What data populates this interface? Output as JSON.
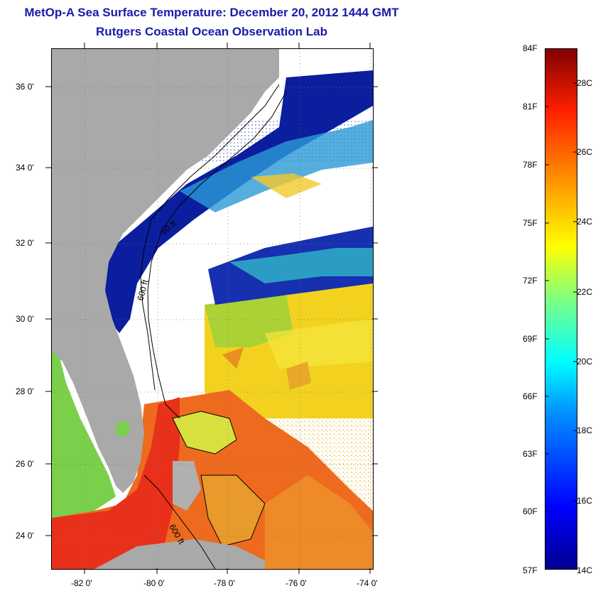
{
  "header": {
    "title": "MetOp-A Sea Surface Temperature:  December 20, 2012 1444 GMT",
    "subtitle": "Rutgers Coastal Ocean Observation Lab"
  },
  "map": {
    "lat_labels": [
      "36 0'",
      "34 0'",
      "32 0'",
      "30 0'",
      "28 0'",
      "26 0'",
      "24 0'"
    ],
    "lon_labels": [
      "-82 0'",
      "-80 0'",
      "-78 0'",
      "-76 0'",
      "-74 0'"
    ],
    "contour_labels": [
      "60 ft",
      "600 ft",
      "600 ft"
    ],
    "colors": {
      "land": "#a9a9a9",
      "cloud": "#ffffff",
      "cold_blue": "#0a1e9e",
      "warm_yellow": "#f2d21e",
      "warm_orange": "#f08a1e",
      "hot_red": "#e8301a",
      "green": "#7ad04a"
    }
  },
  "colorbar": {
    "fahrenheit_labels": [
      "84F",
      "81F",
      "78F",
      "75F",
      "72F",
      "69F",
      "66F",
      "63F",
      "60F",
      "57F"
    ],
    "celsius_labels": [
      "28C",
      "26C",
      "24C",
      "22C",
      "20C",
      "18C",
      "16C",
      "14C"
    ],
    "range_f": [
      57,
      84
    ],
    "range_c": [
      14,
      28.9
    ]
  }
}
